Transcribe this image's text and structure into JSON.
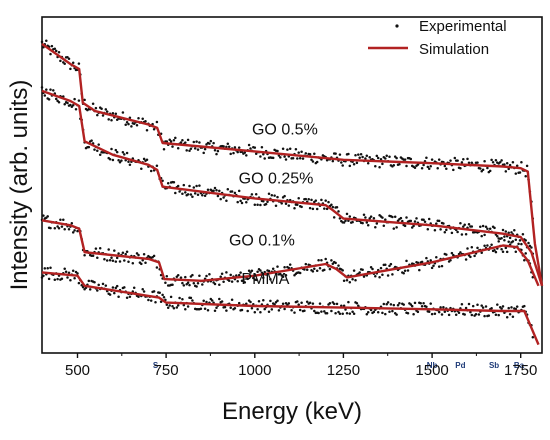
{
  "chart_data": {
    "type": "line",
    "xlabel": "Energy (keV)",
    "ylabel": "Intensity (arb. units)",
    "xlim": [
      400,
      1810
    ],
    "xticks": [
      500,
      750,
      1000,
      1250,
      1500,
      1750
    ],
    "yticks": "none",
    "grid": false,
    "legend": {
      "placement": "top-right",
      "entries": [
        {
          "label": "Experimental",
          "marker": "dot",
          "color": "#111111"
        },
        {
          "label": "Simulation",
          "marker": "line",
          "color": "#b22222"
        }
      ]
    },
    "element_markers": [
      {
        "label": "S",
        "energy": 720
      },
      {
        "label": "Nb",
        "energy": 1500
      },
      {
        "label": "Pd",
        "energy": 1580
      },
      {
        "label": "Sb",
        "energy": 1675
      },
      {
        "label": "Ba",
        "energy": 1745
      }
    ],
    "series": [
      {
        "name": "GO 0.5%",
        "points": [
          [
            400,
            14.4
          ],
          [
            480,
            13.2
          ],
          [
            505,
            12.9
          ],
          [
            515,
            10.9
          ],
          [
            550,
            10.4
          ],
          [
            700,
            9.6
          ],
          [
            725,
            9.4
          ],
          [
            740,
            8.5
          ],
          [
            1000,
            8.0
          ],
          [
            1250,
            7.5
          ],
          [
            1500,
            7.3
          ],
          [
            1700,
            7.1
          ],
          [
            1750,
            7.0
          ],
          [
            1770,
            6.8
          ],
          [
            1790,
            2.5
          ],
          [
            1810,
            0.0
          ]
        ]
      },
      {
        "name": "GO 0.25%",
        "points": [
          [
            400,
            11.6
          ],
          [
            480,
            11.0
          ],
          [
            505,
            10.7
          ],
          [
            520,
            8.6
          ],
          [
            600,
            7.8
          ],
          [
            700,
            7.2
          ],
          [
            725,
            6.9
          ],
          [
            740,
            5.9
          ],
          [
            1000,
            5.2
          ],
          [
            1200,
            4.8
          ],
          [
            1220,
            4.5
          ],
          [
            1250,
            4.0
          ],
          [
            1500,
            3.6
          ],
          [
            1700,
            3.1
          ],
          [
            1750,
            2.9
          ],
          [
            1780,
            2.0
          ],
          [
            1810,
            0.0
          ]
        ]
      },
      {
        "name": "GO 0.1%",
        "points": [
          [
            400,
            3.9
          ],
          [
            480,
            3.6
          ],
          [
            505,
            3.4
          ],
          [
            520,
            2.0
          ],
          [
            700,
            1.6
          ],
          [
            730,
            1.4
          ],
          [
            745,
            0.4
          ],
          [
            850,
            0.3
          ],
          [
            1000,
            0.6
          ],
          [
            1200,
            1.3
          ],
          [
            1230,
            1.0
          ],
          [
            1260,
            0.5
          ],
          [
            1500,
            1.4
          ],
          [
            1700,
            2.4
          ],
          [
            1740,
            2.3
          ],
          [
            1770,
            1.5
          ],
          [
            1800,
            0.0
          ]
        ]
      },
      {
        "name": "PMMA",
        "points": [
          [
            400,
            0.8
          ],
          [
            500,
            0.6
          ],
          [
            520,
            0.0
          ],
          [
            700,
            -0.6
          ],
          [
            730,
            -0.7
          ],
          [
            750,
            -1.0
          ],
          [
            1000,
            -1.2
          ],
          [
            1250,
            -1.3
          ],
          [
            1500,
            -1.4
          ],
          [
            1700,
            -1.5
          ],
          [
            1760,
            -1.5
          ],
          [
            1780,
            -2.5
          ],
          [
            1800,
            -3.5
          ]
        ]
      }
    ],
    "y_range_units": [
      -4.0,
      16.0
    ]
  }
}
